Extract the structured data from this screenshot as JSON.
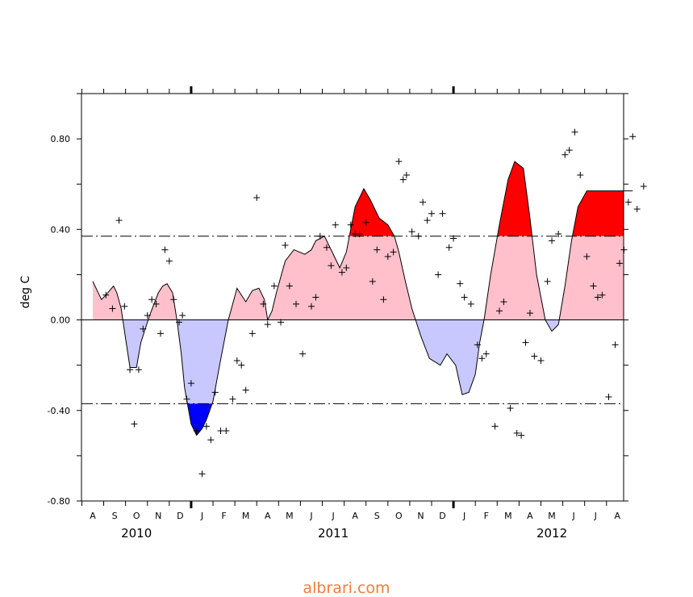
{
  "chart_data": {
    "type": "area",
    "title": "",
    "xlabel": "",
    "ylabel": "deg C",
    "ylim": [
      -0.8,
      1.0
    ],
    "yticks": [
      -0.8,
      -0.4,
      0.0,
      0.4,
      0.8
    ],
    "ytick_labels": [
      "-0.80",
      "-0.40",
      "0.00",
      "0.40",
      "0.80"
    ],
    "thresholds": [
      0.37,
      -0.37
    ],
    "grid": false,
    "month_labels": [
      "A",
      "S",
      "O",
      "N",
      "D",
      "J",
      "F",
      "M",
      "A",
      "M",
      "J",
      "J",
      "A",
      "S",
      "O",
      "N",
      "D",
      "J",
      "F",
      "M",
      "A",
      "M",
      "J",
      "J",
      "A"
    ],
    "year_labels": [
      {
        "text": "2010",
        "month_index": 2
      },
      {
        "text": "2011",
        "month_index": 11
      },
      {
        "text": "2012",
        "month_index": 21
      }
    ],
    "colors": {
      "warm_light": "#ffc0cb",
      "warm_strong": "#ff0000",
      "cold_light": "#c8c8ff",
      "cold_strong": "#0000ff"
    },
    "series": [
      {
        "type": "smoothed",
        "x": [
          0.0,
          0.15,
          0.4,
          0.6,
          0.95,
          1.1,
          1.3,
          1.45,
          1.7,
          2.0,
          2.2,
          2.6,
          3.0,
          3.2,
          3.4,
          3.65,
          3.85,
          4.05,
          4.2,
          4.5,
          4.75,
          5.0,
          5.2,
          5.5,
          5.8,
          6.2,
          6.6,
          7.0,
          7.3,
          7.6,
          7.85,
          8.0,
          8.2,
          8.4,
          8.8,
          9.2,
          9.7,
          10.0,
          10.2,
          10.6,
          10.9,
          11.3,
          11.6,
          12.0,
          12.4,
          12.7,
          13.1,
          13.5,
          13.8,
          14.0,
          14.3,
          14.6,
          15.0,
          15.4,
          15.9,
          16.2,
          16.6,
          16.9,
          17.2,
          17.5,
          17.7,
          17.9,
          18.2,
          18.6,
          19.0,
          19.3,
          19.7,
          20.0,
          20.3,
          20.7,
          21.0,
          21.3,
          21.6,
          21.9,
          22.2,
          22.6,
          22.9,
          23.1,
          23.4,
          23.7,
          24.0,
          24.3,
          24.6,
          24.7
        ],
        "y": [
          0.17,
          0.14,
          0.09,
          0.11,
          0.15,
          0.12,
          0.05,
          -0.05,
          -0.21,
          -0.21,
          -0.1,
          0.02,
          0.12,
          0.15,
          0.16,
          0.12,
          0.0,
          -0.15,
          -0.3,
          -0.46,
          -0.51,
          -0.48,
          -0.44,
          -0.36,
          -0.2,
          0.0,
          0.14,
          0.08,
          0.13,
          0.14,
          0.09,
          0.0,
          0.04,
          0.12,
          0.26,
          0.31,
          0.29,
          0.31,
          0.35,
          0.37,
          0.31,
          0.23,
          0.3,
          0.5,
          0.58,
          0.53,
          0.45,
          0.42,
          0.37,
          0.3,
          0.17,
          0.05,
          -0.07,
          -0.17,
          -0.2,
          -0.15,
          -0.2,
          -0.33,
          -0.32,
          -0.24,
          -0.1,
          0.0,
          0.2,
          0.42,
          0.62,
          0.7,
          0.67,
          0.45,
          0.2,
          0.0,
          -0.05,
          -0.02,
          0.15,
          0.35,
          0.5,
          0.57,
          0.57,
          0.57,
          0.57,
          0.57,
          0.57,
          0.57,
          0.57,
          0.57
        ]
      },
      {
        "type": "monthly_points",
        "points": [
          [
            0.6,
            0.11
          ],
          [
            0.9,
            0.05
          ],
          [
            1.2,
            0.44
          ],
          [
            1.45,
            0.06
          ],
          [
            1.7,
            -0.22
          ],
          [
            1.9,
            -0.46
          ],
          [
            2.1,
            -0.22
          ],
          [
            2.3,
            -0.04
          ],
          [
            2.5,
            0.02
          ],
          [
            2.7,
            0.09
          ],
          [
            2.9,
            0.07
          ],
          [
            3.1,
            -0.06
          ],
          [
            3.3,
            0.31
          ],
          [
            3.5,
            0.26
          ],
          [
            3.7,
            0.09
          ],
          [
            3.95,
            -0.01
          ],
          [
            4.1,
            0.02
          ],
          [
            4.3,
            -0.35
          ],
          [
            4.5,
            -0.28
          ],
          [
            4.75,
            -0.49
          ],
          [
            5.0,
            -0.68
          ],
          [
            5.2,
            -0.47
          ],
          [
            5.4,
            -0.53
          ],
          [
            5.6,
            -0.32
          ],
          [
            5.85,
            -0.49
          ],
          [
            6.1,
            -0.49
          ],
          [
            6.4,
            -0.35
          ],
          [
            6.6,
            -0.18
          ],
          [
            6.8,
            -0.2
          ],
          [
            7.0,
            -0.31
          ],
          [
            7.3,
            -0.06
          ],
          [
            7.5,
            0.54
          ],
          [
            7.8,
            0.07
          ],
          [
            8.0,
            -0.02
          ],
          [
            8.3,
            0.15
          ],
          [
            8.6,
            -0.01
          ],
          [
            8.8,
            0.33
          ],
          [
            9.0,
            0.15
          ],
          [
            9.3,
            0.07
          ],
          [
            9.6,
            -0.15
          ],
          [
            10.0,
            0.06
          ],
          [
            10.2,
            0.1
          ],
          [
            10.4,
            0.37
          ],
          [
            10.7,
            0.32
          ],
          [
            10.9,
            0.24
          ],
          [
            11.1,
            0.42
          ],
          [
            11.4,
            0.21
          ],
          [
            11.6,
            0.23
          ],
          [
            11.8,
            0.42
          ],
          [
            12.0,
            0.38
          ],
          [
            12.2,
            0.38
          ],
          [
            12.5,
            0.43
          ],
          [
            12.8,
            0.17
          ],
          [
            13.0,
            0.31
          ],
          [
            13.3,
            0.09
          ],
          [
            13.5,
            0.28
          ],
          [
            13.75,
            0.3
          ],
          [
            14.0,
            0.7
          ],
          [
            14.2,
            0.62
          ],
          [
            14.35,
            0.64
          ],
          [
            14.6,
            0.39
          ],
          [
            14.9,
            0.37
          ],
          [
            15.1,
            0.52
          ],
          [
            15.3,
            0.44
          ],
          [
            15.5,
            0.47
          ],
          [
            15.8,
            0.2
          ],
          [
            16.0,
            0.47
          ],
          [
            16.3,
            0.32
          ],
          [
            16.5,
            0.36
          ],
          [
            16.8,
            0.16
          ],
          [
            17.0,
            0.1
          ],
          [
            17.3,
            0.07
          ],
          [
            17.6,
            -0.11
          ],
          [
            17.8,
            -0.17
          ],
          [
            18.0,
            -0.15
          ],
          [
            18.4,
            -0.47
          ],
          [
            18.6,
            0.04
          ],
          [
            18.8,
            0.08
          ],
          [
            19.1,
            -0.39
          ],
          [
            19.4,
            -0.5
          ],
          [
            19.6,
            -0.51
          ],
          [
            19.8,
            -0.1
          ],
          [
            20.0,
            0.03
          ],
          [
            20.2,
            -0.16
          ],
          [
            20.5,
            -0.18
          ],
          [
            20.8,
            0.17
          ],
          [
            21.0,
            0.35
          ],
          [
            21.3,
            0.38
          ],
          [
            21.6,
            0.73
          ],
          [
            21.8,
            0.75
          ],
          [
            22.05,
            0.83
          ],
          [
            22.3,
            0.64
          ],
          [
            22.6,
            0.28
          ],
          [
            22.9,
            0.15
          ],
          [
            23.1,
            0.1
          ],
          [
            23.3,
            0.11
          ],
          [
            23.6,
            -0.34
          ],
          [
            23.9,
            -0.11
          ],
          [
            24.1,
            0.25
          ],
          [
            24.3,
            0.31
          ],
          [
            24.5,
            0.52
          ],
          [
            24.7,
            0.81
          ],
          [
            24.9,
            0.49
          ],
          [
            25.2,
            0.59
          ]
        ]
      }
    ]
  },
  "footer": {
    "credit": "albrari.com"
  }
}
